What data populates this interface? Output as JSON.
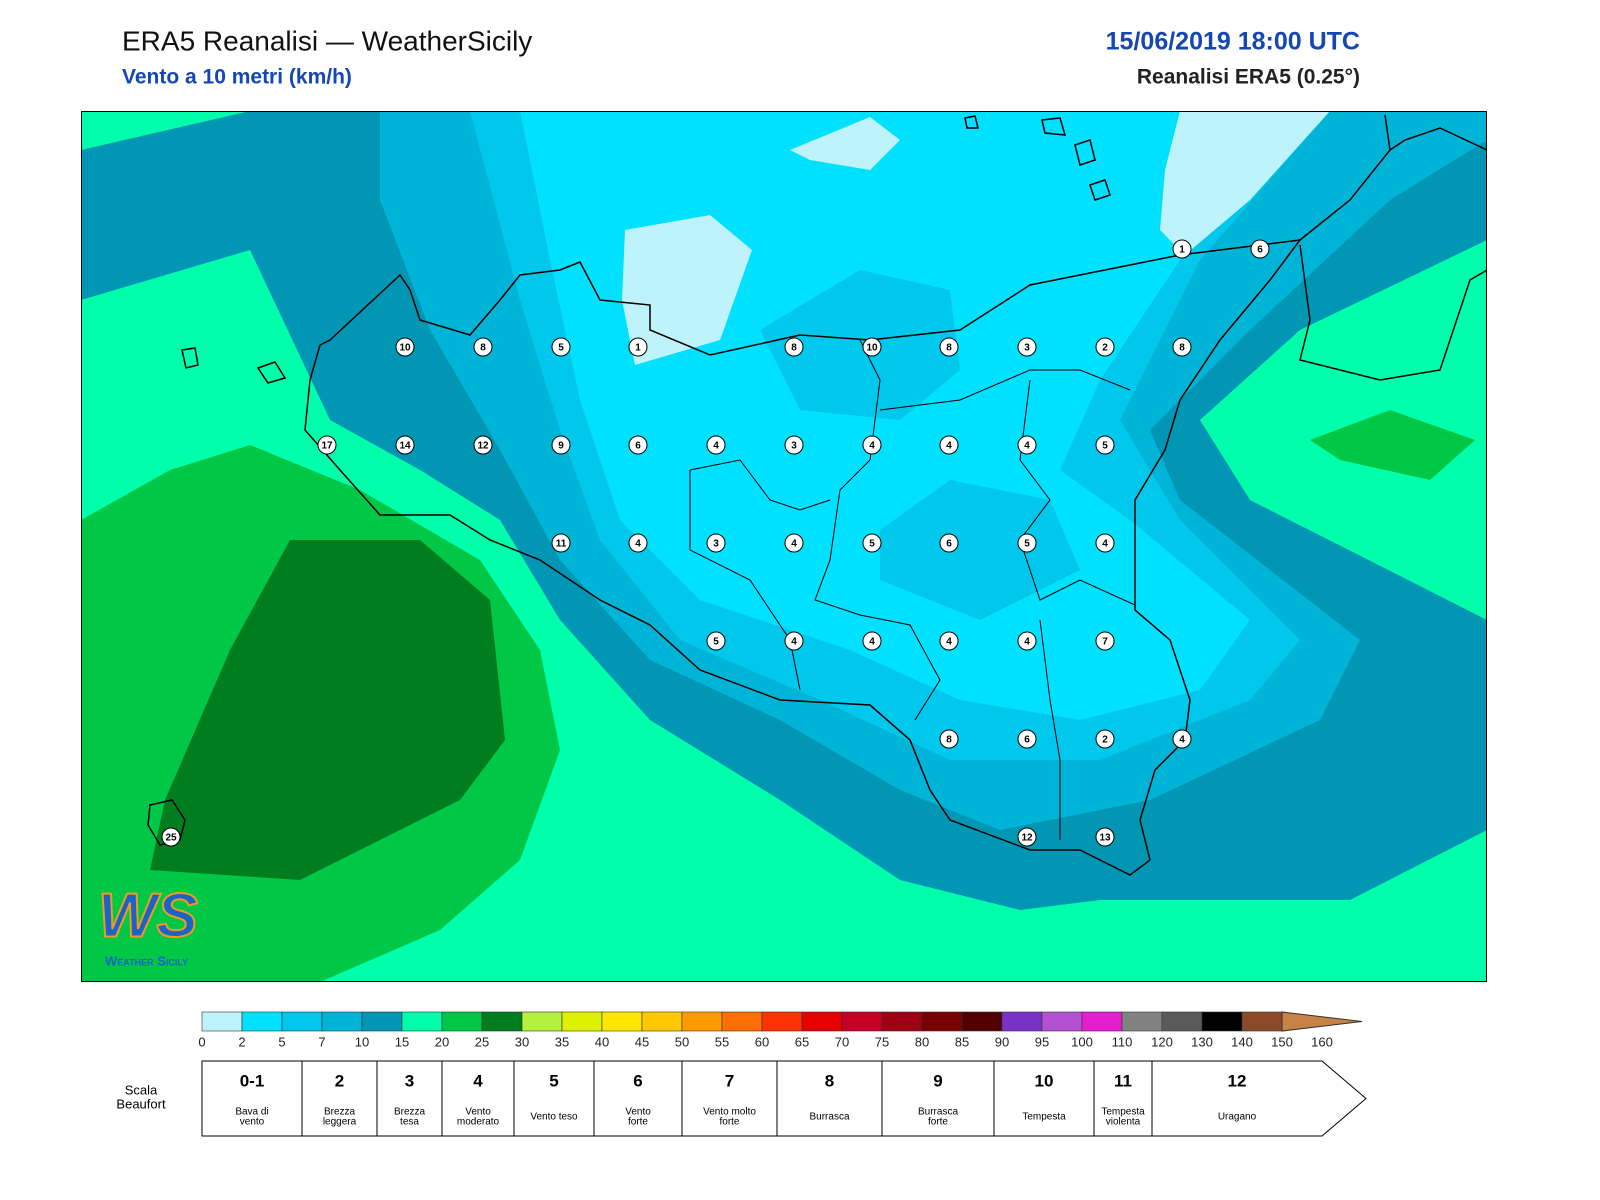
{
  "header": {
    "title": "ERA5 Reanalisi — WeatherSicily",
    "subtitle": "Vento a 10 metri (km/h)",
    "date": "15/06/2019 18:00 UTC",
    "source": "Reanalisi ERA5 (0.25°)"
  },
  "stations": [
    10,
    8,
    5,
    1,
    8,
    10,
    8,
    3,
    2,
    8,
    1,
    6,
    17,
    14,
    12,
    9,
    6,
    4,
    3,
    4,
    4,
    4,
    5,
    11,
    4,
    3,
    4,
    5,
    6,
    5,
    4,
    5,
    4,
    4,
    4,
    4,
    7,
    8,
    6,
    2,
    4,
    12,
    13,
    25
  ],
  "color_scale": {
    "ticks": [
      0,
      2,
      5,
      7,
      10,
      15,
      20,
      25,
      30,
      35,
      40,
      45,
      50,
      55,
      60,
      65,
      70,
      75,
      80,
      85,
      90,
      95,
      100,
      110,
      120,
      130,
      140,
      150,
      160
    ],
    "colors": [
      "#bff3fb",
      "#00e0ff",
      "#00c8ec",
      "#00b4d8",
      "#0096b4",
      "#00ffaa",
      "#00c846",
      "#007d1e",
      "#b4f03c",
      "#dcf000",
      "#ffe600",
      "#ffc800",
      "#ff9b00",
      "#ff6e00",
      "#ff3200",
      "#e60000",
      "#c80028",
      "#a00014",
      "#780000",
      "#500000",
      "#7832c8",
      "#b450d2",
      "#e61ed2",
      "#828282",
      "#5a5a5a",
      "#000000",
      "#8c4b28",
      "#c88246"
    ]
  },
  "beaufort": {
    "title": [
      "Scala",
      "Beaufort"
    ],
    "levels": [
      {
        "force": "0-1",
        "label": [
          "Bava di",
          "vento"
        ]
      },
      {
        "force": "2",
        "label": [
          "Brezza",
          "leggera"
        ]
      },
      {
        "force": "3",
        "label": [
          "Brezza",
          "tesa"
        ]
      },
      {
        "force": "4",
        "label": [
          "Vento",
          "moderato"
        ]
      },
      {
        "force": "5",
        "label": [
          "Vento teso"
        ]
      },
      {
        "force": "6",
        "label": [
          "Vento",
          "forte"
        ]
      },
      {
        "force": "7",
        "label": [
          "Vento molto",
          "forte"
        ]
      },
      {
        "force": "8",
        "label": [
          "Burrasca"
        ]
      },
      {
        "force": "9",
        "label": [
          "Burrasca",
          "forte"
        ]
      },
      {
        "force": "10",
        "label": [
          "Tempesta"
        ]
      },
      {
        "force": "11",
        "label": [
          "Tempesta",
          "violenta"
        ]
      },
      {
        "force": "12",
        "label": [
          "Uragano"
        ]
      }
    ]
  },
  "logo": {
    "mark": "WS",
    "text": "Weather Sicily"
  }
}
